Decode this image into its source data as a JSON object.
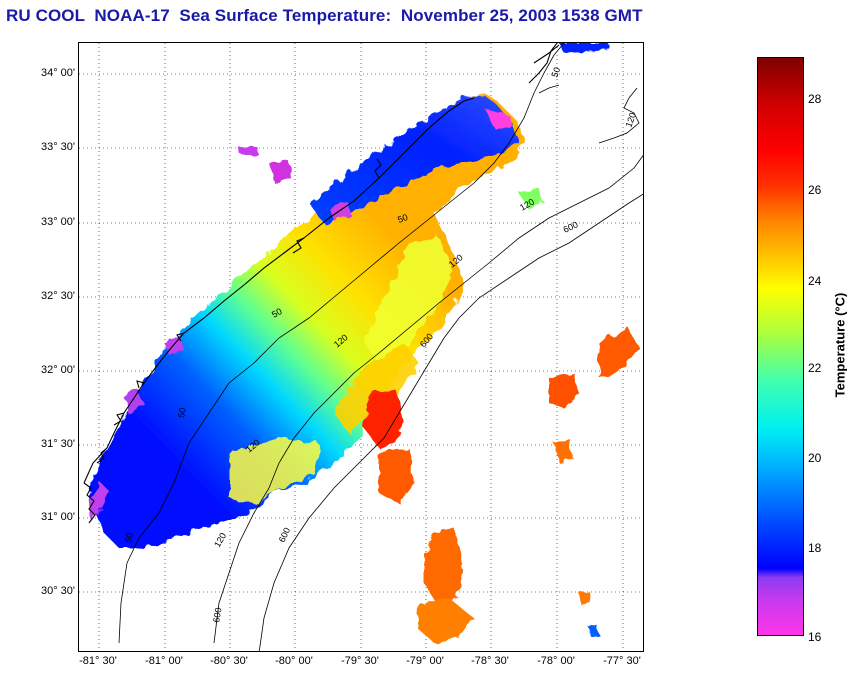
{
  "title": "RU COOL  NOAA-17  Sea Surface Temperature:  November 25, 2003 1538 GMT",
  "map": {
    "lat_labels": [
      "34° 00'",
      "33° 30'",
      "33° 00'",
      "32° 30'",
      "32° 00'",
      "31° 30'",
      "31° 00'",
      "30° 30'"
    ],
    "lon_labels": [
      "-81° 30'",
      "-81° 00'",
      "-80° 30'",
      "-80° 00'",
      "-79° 30'",
      "-79° 00'",
      "-78° 30'",
      "-78° 00'",
      "-77° 30'"
    ],
    "contour_labels": [
      "50",
      "50",
      "50",
      "50",
      "50",
      "120",
      "120",
      "120",
      "120",
      "120",
      "600",
      "600",
      "600",
      "600",
      "120"
    ]
  },
  "colorbar": {
    "label": "Temperature (°C)",
    "ticks": [
      "28",
      "26",
      "24",
      "22",
      "20",
      "18",
      "16"
    ]
  },
  "colors": {
    "title": "#1a1aa8",
    "land": "#ffffff",
    "coast": "#000000"
  }
}
